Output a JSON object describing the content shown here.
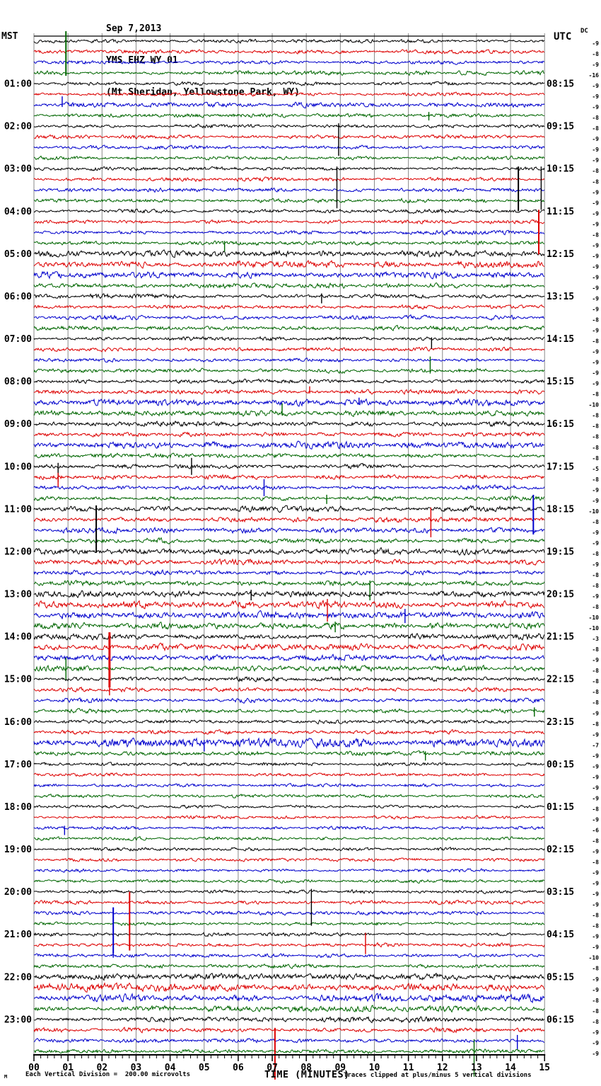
{
  "header": {
    "date": "Sep 7,2013",
    "station": "YMS EHZ WY 01",
    "location": "(Mt Sheridan, Yellowstone Park, WY)"
  },
  "chart_data": {
    "type": "line",
    "subtype": "helicorder-seismogram",
    "left_time_header": "MST",
    "right_time_header": "UTC",
    "dc_header": "DC",
    "xlabel": "TIME (MINUTES)",
    "x_min": 0,
    "x_max": 15,
    "x_tick_labels": [
      "00",
      "01",
      "02",
      "03",
      "04",
      "05",
      "06",
      "07",
      "08",
      "09",
      "10",
      "11",
      "12",
      "13",
      "14",
      "15"
    ],
    "rows": 96,
    "minutes_per_row": 15,
    "trace_colors_cycle": [
      "#000000",
      "#dd0000",
      "#0000cc",
      "#006600"
    ],
    "grid_color": "#8a8a8a",
    "label_first_row": 4,
    "label_row_step": 4,
    "left_labels": [
      "01:00",
      "02:00",
      "03:00",
      "04:00",
      "05:00",
      "06:00",
      "07:00",
      "08:00",
      "09:00",
      "10:00",
      "11:00",
      "12:00",
      "13:00",
      "14:00",
      "15:00",
      "16:00",
      "17:00",
      "18:00",
      "19:00",
      "20:00",
      "21:00",
      "22:00",
      "23:00"
    ],
    "right_labels": [
      "08:15",
      "09:15",
      "10:15",
      "11:15",
      "12:15",
      "13:15",
      "14:15",
      "15:15",
      "16:15",
      "17:15",
      "18:15",
      "19:15",
      "20:15",
      "21:15",
      "22:15",
      "23:15",
      "00:15",
      "01:15",
      "02:15",
      "03:15",
      "04:15",
      "05:15",
      "06:15"
    ],
    "dc_values": [
      -9,
      -8,
      -9,
      -16,
      -9,
      -9,
      -9,
      -8,
      -8,
      -9,
      -9,
      -9,
      -8,
      -8,
      -9,
      -9,
      -9,
      -9,
      -8,
      -9,
      -9,
      -9,
      -9,
      -9,
      -9,
      -9,
      -8,
      -9,
      -8,
      -9,
      -9,
      -9,
      -9,
      -8,
      -10,
      -8,
      -8,
      -8,
      -8,
      -8,
      -5,
      -8,
      -9,
      -9,
      -10,
      -8,
      -9,
      -9,
      -8,
      -9,
      -8,
      -8,
      -9,
      -8,
      -10,
      -10,
      -3,
      -8,
      -9,
      -8,
      -8,
      -8,
      -8,
      -9,
      -8,
      -9,
      -7,
      -9,
      -9,
      -9,
      -9,
      -9,
      -8,
      -9,
      -6,
      -8,
      -9,
      -8,
      -9,
      -9,
      -9,
      -9,
      -8,
      -8,
      -9,
      -9,
      -10,
      -8,
      -9,
      -9,
      -8,
      -8,
      -8,
      -9,
      -9,
      -9
    ],
    "noise_amplitudes": [
      1.8,
      1.8,
      1.8,
      1.8,
      1.6,
      1.6,
      2.2,
      1.7,
      1.7,
      1.6,
      1.7,
      1.6,
      1.6,
      1.7,
      1.8,
      1.7,
      1.8,
      1.7,
      1.9,
      1.8,
      2.8,
      3.0,
      3.0,
      2.4,
      2.0,
      1.9,
      2.0,
      1.9,
      1.8,
      1.8,
      1.8,
      1.8,
      1.8,
      2.0,
      2.8,
      2.3,
      2.2,
      2.0,
      3.0,
      2.0,
      2.0,
      2.0,
      2.0,
      2.0,
      2.4,
      2.2,
      2.4,
      2.2,
      3.0,
      2.6,
      2.2,
      2.2,
      3.0,
      3.2,
      3.4,
      2.8,
      2.6,
      2.8,
      2.6,
      2.4,
      2.0,
      2.0,
      2.0,
      2.0,
      1.8,
      1.8,
      3.8,
      2.0,
      1.4,
      1.4,
      1.4,
      1.4,
      1.4,
      1.4,
      1.5,
      1.4,
      1.5,
      1.4,
      1.5,
      1.5,
      1.6,
      1.7,
      1.7,
      1.6,
      1.6,
      1.7,
      1.6,
      1.7,
      2.8,
      3.6,
      3.2,
      2.6,
      2.4,
      2.0,
      1.8,
      1.8
    ],
    "events": [
      {
        "r": 3,
        "m": 0.94,
        "u": 59,
        "d": 4,
        "w": 2
      },
      {
        "r": 6,
        "m": 0.83,
        "u": 12,
        "d": 3
      },
      {
        "r": 7,
        "m": 11.6,
        "u": 5,
        "d": 7
      },
      {
        "r": 8,
        "m": 8.95,
        "u": 4,
        "d": 42
      },
      {
        "r": 12,
        "m": 8.9,
        "u": 3,
        "d": 56
      },
      {
        "r": 12,
        "m": 14.23,
        "u": 3,
        "d": 60,
        "w": 2
      },
      {
        "r": 12,
        "m": 14.9,
        "u": 3,
        "d": 58
      },
      {
        "r": 17,
        "m": 14.83,
        "u": 17,
        "d": 46,
        "w": 2
      },
      {
        "r": 19,
        "m": 5.6,
        "u": 3,
        "d": 12
      },
      {
        "r": 24,
        "m": 8.45,
        "u": 4,
        "d": 10
      },
      {
        "r": 28,
        "m": 11.68,
        "u": 2,
        "d": 14
      },
      {
        "r": 31,
        "m": 11.64,
        "u": 20,
        "d": 4
      },
      {
        "r": 33,
        "m": 8.1,
        "u": 8,
        "d": 2
      },
      {
        "r": 34,
        "m": 9.55,
        "u": 7,
        "d": 3
      },
      {
        "r": 35,
        "m": 7.29,
        "u": 14,
        "d": 3
      },
      {
        "r": 40,
        "m": 0.71,
        "u": 5,
        "d": 22
      },
      {
        "r": 40,
        "m": 4.63,
        "u": 12,
        "d": 12
      },
      {
        "r": 41,
        "m": 0.71,
        "u": 6,
        "d": 14
      },
      {
        "r": 42,
        "m": 6.76,
        "u": 12,
        "d": 12
      },
      {
        "r": 43,
        "m": 8.6,
        "u": 5,
        "d": 8
      },
      {
        "r": 44,
        "m": 1.83,
        "u": 5,
        "d": 62,
        "w": 2
      },
      {
        "r": 45,
        "m": 11.66,
        "u": 17,
        "d": 25
      },
      {
        "r": 46,
        "m": 14.67,
        "u": 50,
        "d": 6,
        "w": 2
      },
      {
        "r": 51,
        "m": 9.87,
        "u": 4,
        "d": 24
      },
      {
        "r": 52,
        "m": 6.38,
        "u": 6,
        "d": 9
      },
      {
        "r": 53,
        "m": 8.62,
        "u": 8,
        "d": 24
      },
      {
        "r": 54,
        "m": 10.9,
        "u": 9,
        "d": 11
      },
      {
        "r": 55,
        "m": 8.85,
        "u": 6,
        "d": 9
      },
      {
        "r": 57,
        "m": 2.22,
        "u": 21,
        "d": 57,
        "w": 3
      },
      {
        "r": 59,
        "m": 0.94,
        "u": 15,
        "d": 16
      },
      {
        "r": 61,
        "m": 2.22,
        "u": 3,
        "d": 8
      },
      {
        "r": 63,
        "m": 14.7,
        "u": 5,
        "d": 8
      },
      {
        "r": 66,
        "m": 5.0,
        "u": 4,
        "d": 12
      },
      {
        "r": 67,
        "m": 11.5,
        "u": 3,
        "d": 10
      },
      {
        "r": 74,
        "m": 0.9,
        "u": 3,
        "d": 10
      },
      {
        "r": 80,
        "m": 8.15,
        "u": 4,
        "d": 48
      },
      {
        "r": 81,
        "m": 2.81,
        "u": 15,
        "d": 68,
        "w": 2
      },
      {
        "r": 82,
        "m": 2.33,
        "u": 8,
        "d": 57,
        "w": 2
      },
      {
        "r": 85,
        "m": 9.74,
        "u": 17,
        "d": 13
      },
      {
        "r": 86,
        "m": 2.33,
        "u": 6,
        "d": 3
      },
      {
        "r": 93,
        "m": 7.08,
        "u": 3,
        "d": 70,
        "w": 2
      },
      {
        "r": 94,
        "m": 14.2,
        "u": 8,
        "d": 12
      },
      {
        "r": 95,
        "m": 12.93,
        "u": 17,
        "d": 36
      }
    ],
    "noise_bursts": [
      {
        "r": 66,
        "m0": 2.0,
        "m1": 4.6,
        "a": 5.5
      },
      {
        "r": 38,
        "m0": 7.5,
        "m1": 10.0,
        "a": 4.5
      },
      {
        "r": 34,
        "m0": 6.8,
        "m1": 8.2,
        "a": 4.0
      },
      {
        "r": 89,
        "m0": 1.0,
        "m1": 3.2,
        "a": 5.0
      },
      {
        "r": 57,
        "m0": 3.3,
        "m1": 3.9,
        "a": 5.0
      }
    ],
    "footer": {
      "corner": "M",
      "left": "Each Vertical Division =  200.00 microvolts",
      "center": "TIME (MINUTES)",
      "right": "Traces clipped at plus/minus 5 vertical divisions"
    }
  }
}
